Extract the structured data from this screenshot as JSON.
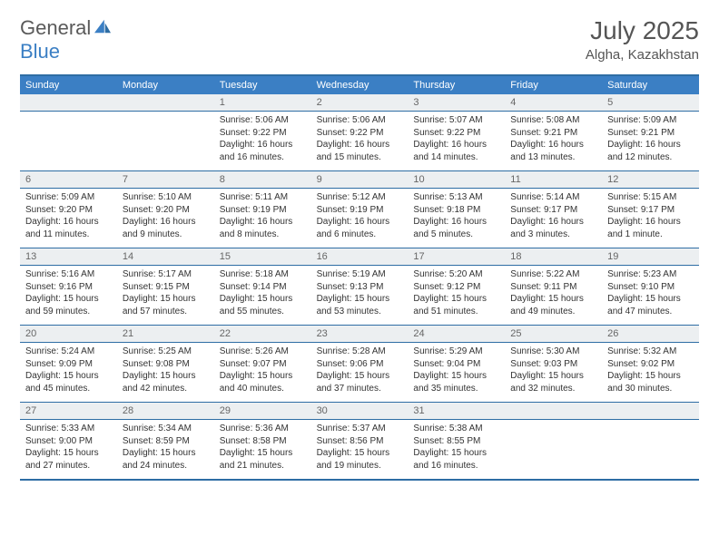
{
  "logo": {
    "part1": "General",
    "part2": "Blue"
  },
  "header": {
    "month": "July 2025",
    "location": "Algha, Kazakhstan"
  },
  "colors": {
    "header_bar": "#3b7fc4",
    "border": "#2e6da4",
    "daynum_bg": "#eceff1",
    "text": "#333333",
    "logo_gray": "#5a5a5a"
  },
  "daysOfWeek": [
    "Sunday",
    "Monday",
    "Tuesday",
    "Wednesday",
    "Thursday",
    "Friday",
    "Saturday"
  ],
  "weeks": [
    [
      {
        "n": "",
        "sr": "",
        "ss": "",
        "dl": ""
      },
      {
        "n": "",
        "sr": "",
        "ss": "",
        "dl": ""
      },
      {
        "n": "1",
        "sr": "5:06 AM",
        "ss": "9:22 PM",
        "dl": "16 hours and 16 minutes."
      },
      {
        "n": "2",
        "sr": "5:06 AM",
        "ss": "9:22 PM",
        "dl": "16 hours and 15 minutes."
      },
      {
        "n": "3",
        "sr": "5:07 AM",
        "ss": "9:22 PM",
        "dl": "16 hours and 14 minutes."
      },
      {
        "n": "4",
        "sr": "5:08 AM",
        "ss": "9:21 PM",
        "dl": "16 hours and 13 minutes."
      },
      {
        "n": "5",
        "sr": "5:09 AM",
        "ss": "9:21 PM",
        "dl": "16 hours and 12 minutes."
      }
    ],
    [
      {
        "n": "6",
        "sr": "5:09 AM",
        "ss": "9:20 PM",
        "dl": "16 hours and 11 minutes."
      },
      {
        "n": "7",
        "sr": "5:10 AM",
        "ss": "9:20 PM",
        "dl": "16 hours and 9 minutes."
      },
      {
        "n": "8",
        "sr": "5:11 AM",
        "ss": "9:19 PM",
        "dl": "16 hours and 8 minutes."
      },
      {
        "n": "9",
        "sr": "5:12 AM",
        "ss": "9:19 PM",
        "dl": "16 hours and 6 minutes."
      },
      {
        "n": "10",
        "sr": "5:13 AM",
        "ss": "9:18 PM",
        "dl": "16 hours and 5 minutes."
      },
      {
        "n": "11",
        "sr": "5:14 AM",
        "ss": "9:17 PM",
        "dl": "16 hours and 3 minutes."
      },
      {
        "n": "12",
        "sr": "5:15 AM",
        "ss": "9:17 PM",
        "dl": "16 hours and 1 minute."
      }
    ],
    [
      {
        "n": "13",
        "sr": "5:16 AM",
        "ss": "9:16 PM",
        "dl": "15 hours and 59 minutes."
      },
      {
        "n": "14",
        "sr": "5:17 AM",
        "ss": "9:15 PM",
        "dl": "15 hours and 57 minutes."
      },
      {
        "n": "15",
        "sr": "5:18 AM",
        "ss": "9:14 PM",
        "dl": "15 hours and 55 minutes."
      },
      {
        "n": "16",
        "sr": "5:19 AM",
        "ss": "9:13 PM",
        "dl": "15 hours and 53 minutes."
      },
      {
        "n": "17",
        "sr": "5:20 AM",
        "ss": "9:12 PM",
        "dl": "15 hours and 51 minutes."
      },
      {
        "n": "18",
        "sr": "5:22 AM",
        "ss": "9:11 PM",
        "dl": "15 hours and 49 minutes."
      },
      {
        "n": "19",
        "sr": "5:23 AM",
        "ss": "9:10 PM",
        "dl": "15 hours and 47 minutes."
      }
    ],
    [
      {
        "n": "20",
        "sr": "5:24 AM",
        "ss": "9:09 PM",
        "dl": "15 hours and 45 minutes."
      },
      {
        "n": "21",
        "sr": "5:25 AM",
        "ss": "9:08 PM",
        "dl": "15 hours and 42 minutes."
      },
      {
        "n": "22",
        "sr": "5:26 AM",
        "ss": "9:07 PM",
        "dl": "15 hours and 40 minutes."
      },
      {
        "n": "23",
        "sr": "5:28 AM",
        "ss": "9:06 PM",
        "dl": "15 hours and 37 minutes."
      },
      {
        "n": "24",
        "sr": "5:29 AM",
        "ss": "9:04 PM",
        "dl": "15 hours and 35 minutes."
      },
      {
        "n": "25",
        "sr": "5:30 AM",
        "ss": "9:03 PM",
        "dl": "15 hours and 32 minutes."
      },
      {
        "n": "26",
        "sr": "5:32 AM",
        "ss": "9:02 PM",
        "dl": "15 hours and 30 minutes."
      }
    ],
    [
      {
        "n": "27",
        "sr": "5:33 AM",
        "ss": "9:00 PM",
        "dl": "15 hours and 27 minutes."
      },
      {
        "n": "28",
        "sr": "5:34 AM",
        "ss": "8:59 PM",
        "dl": "15 hours and 24 minutes."
      },
      {
        "n": "29",
        "sr": "5:36 AM",
        "ss": "8:58 PM",
        "dl": "15 hours and 21 minutes."
      },
      {
        "n": "30",
        "sr": "5:37 AM",
        "ss": "8:56 PM",
        "dl": "15 hours and 19 minutes."
      },
      {
        "n": "31",
        "sr": "5:38 AM",
        "ss": "8:55 PM",
        "dl": "15 hours and 16 minutes."
      },
      {
        "n": "",
        "sr": "",
        "ss": "",
        "dl": ""
      },
      {
        "n": "",
        "sr": "",
        "ss": "",
        "dl": ""
      }
    ]
  ],
  "labels": {
    "sunrise": "Sunrise: ",
    "sunset": "Sunset: ",
    "daylight": "Daylight: "
  }
}
